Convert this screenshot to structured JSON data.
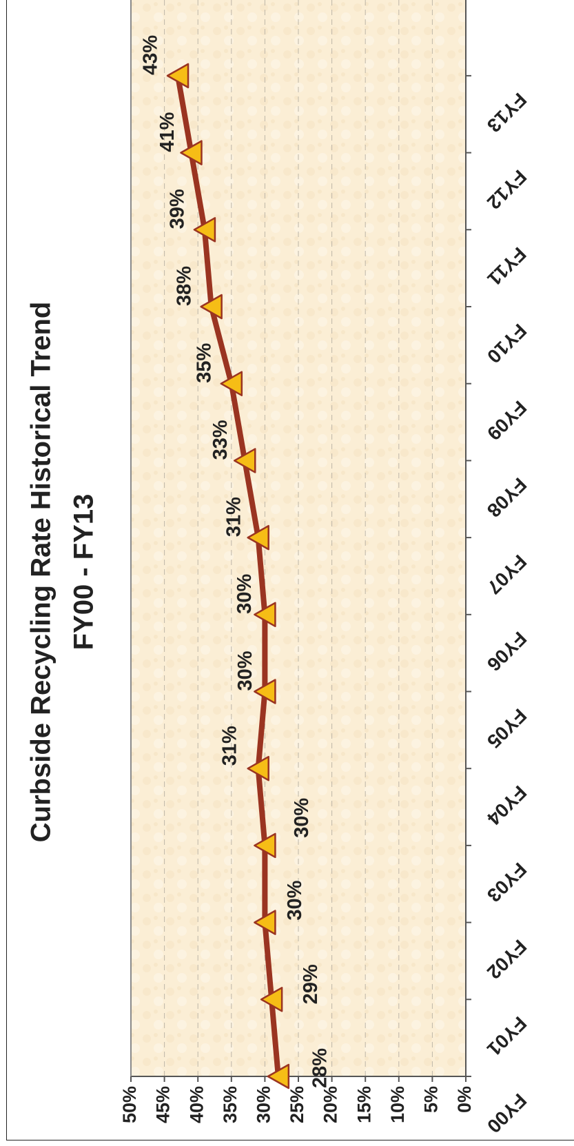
{
  "chart_data": {
    "type": "line",
    "title": "Curbside Recycling Rate Historical Trend",
    "subtitle": "FY00 - FY13",
    "categories": [
      "FY00",
      "FY01",
      "FY02",
      "FY03",
      "FY04",
      "FY05",
      "FY06",
      "FY07",
      "FY08",
      "FY09",
      "FY10",
      "FY11",
      "FY12",
      "FY13"
    ],
    "series": [
      {
        "values": [
          28,
          29,
          30,
          30,
          31,
          30,
          30,
          31,
          33,
          35,
          38,
          39,
          41,
          43
        ],
        "labels": [
          "28%",
          "29%",
          "30%",
          "30%",
          "31%",
          "30%",
          "30%",
          "31%",
          "33%",
          "35%",
          "38%",
          "39%",
          "41%",
          "43%"
        ]
      }
    ],
    "y_ticks": [
      "0%",
      "5%",
      "10%",
      "15%",
      "20%",
      "25%",
      "30%",
      "35%",
      "40%",
      "45%",
      "50%"
    ],
    "ylim": [
      0,
      50
    ],
    "orientation": "rotated 90 degrees clockwise",
    "grid": true,
    "colors": {
      "line": "#9a3421",
      "marker_fill": "#f6bd16",
      "marker_stroke": "#9a3421",
      "plot_background": "#fbeed5",
      "gridline": "#bdb6a8"
    }
  }
}
